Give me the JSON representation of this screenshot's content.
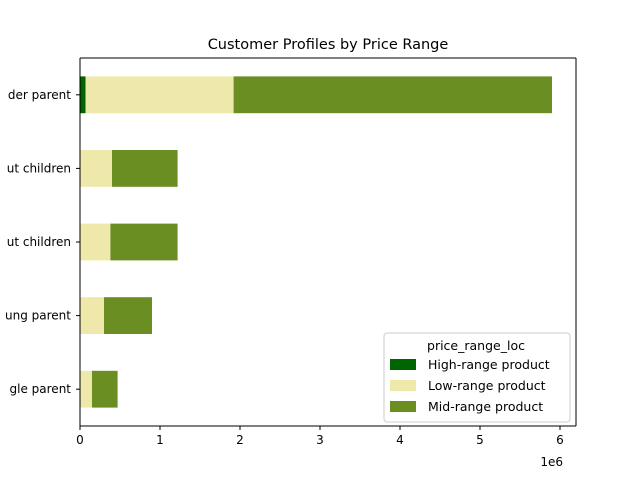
{
  "chart_data": {
    "type": "bar",
    "orientation": "horizontal",
    "stacked": true,
    "title": "Customer Profiles by Price Range",
    "xlabel": "",
    "ylabel": "",
    "x_offset_label": "1e6",
    "x_ticks": [
      0,
      1,
      2,
      3,
      4,
      5,
      6
    ],
    "xlim": [
      0,
      6.2
    ],
    "grid": false,
    "legend_placement": "lower right",
    "legend_title": "price_range_loc",
    "categories_display": [
      "der parent",
      "ut children",
      "ut children",
      "ung parent",
      "gle parent"
    ],
    "series": [
      {
        "name": "High-range product",
        "color": "#006400",
        "values": [
          0.07,
          0,
          0,
          0,
          0
        ]
      },
      {
        "name": "Low-range product",
        "color": "#EEE8AA",
        "values": [
          1.85,
          0.4,
          0.38,
          0.3,
          0.15
        ]
      },
      {
        "name": "Mid-range product",
        "color": "#6B8E23",
        "values": [
          3.98,
          0.82,
          0.84,
          0.6,
          0.32
        ]
      }
    ]
  }
}
